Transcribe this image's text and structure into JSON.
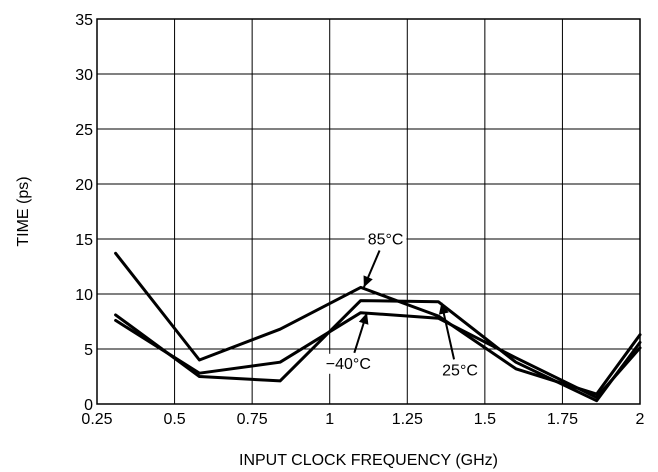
{
  "chart_data": {
    "type": "line",
    "title": "",
    "xlabel": "INPUT CLOCK FREQUENCY (GHz)",
    "ylabel": "TIME (ps)",
    "xlim": [
      0.25,
      2.0
    ],
    "ylim": [
      0,
      35
    ],
    "x_ticks": [
      0.25,
      0.5,
      0.75,
      1.0,
      1.25,
      1.5,
      1.75,
      2.0
    ],
    "x_tick_labels": [
      "0.25",
      "0.5",
      "0.75",
      "1",
      "1.25",
      "1.5",
      "1.75",
      "2"
    ],
    "y_ticks": [
      0,
      5,
      10,
      15,
      20,
      25,
      30,
      35
    ],
    "y_tick_labels": [
      "0",
      "5",
      "10",
      "15",
      "20",
      "25",
      "30",
      "35"
    ],
    "grid": true,
    "legend": "none",
    "series": [
      {
        "name": "85°C",
        "x": [
          0.31,
          0.58,
          0.84,
          1.1,
          1.35,
          1.6,
          1.86,
          2.0
        ],
        "values": [
          13.7,
          4.0,
          6.8,
          10.6,
          8.0,
          3.2,
          0.9,
          6.3
        ]
      },
      {
        "name": "25°C",
        "x": [
          0.31,
          0.58,
          0.84,
          1.1,
          1.35,
          1.6,
          1.86,
          2.0
        ],
        "values": [
          8.1,
          2.5,
          2.1,
          9.4,
          9.3,
          3.8,
          0.3,
          5.6
        ]
      },
      {
        "name": "−40°C",
        "x": [
          0.31,
          0.58,
          0.84,
          1.1,
          1.35,
          1.6,
          1.86,
          2.0
        ],
        "values": [
          7.6,
          2.8,
          3.8,
          8.3,
          7.8,
          4.2,
          0.6,
          5.1
        ]
      }
    ],
    "annotations": [
      {
        "text": "85°C",
        "x": 1.18,
        "y": 14.5,
        "arrow_to": [
          1.11,
          10.6
        ]
      },
      {
        "text": "−40°C",
        "x": 1.06,
        "y": 3.2,
        "arrow_to": [
          1.12,
          8.3
        ]
      },
      {
        "text": "25°C",
        "x": 1.42,
        "y": 2.6,
        "arrow_to": [
          1.36,
          9.2
        ]
      }
    ]
  }
}
